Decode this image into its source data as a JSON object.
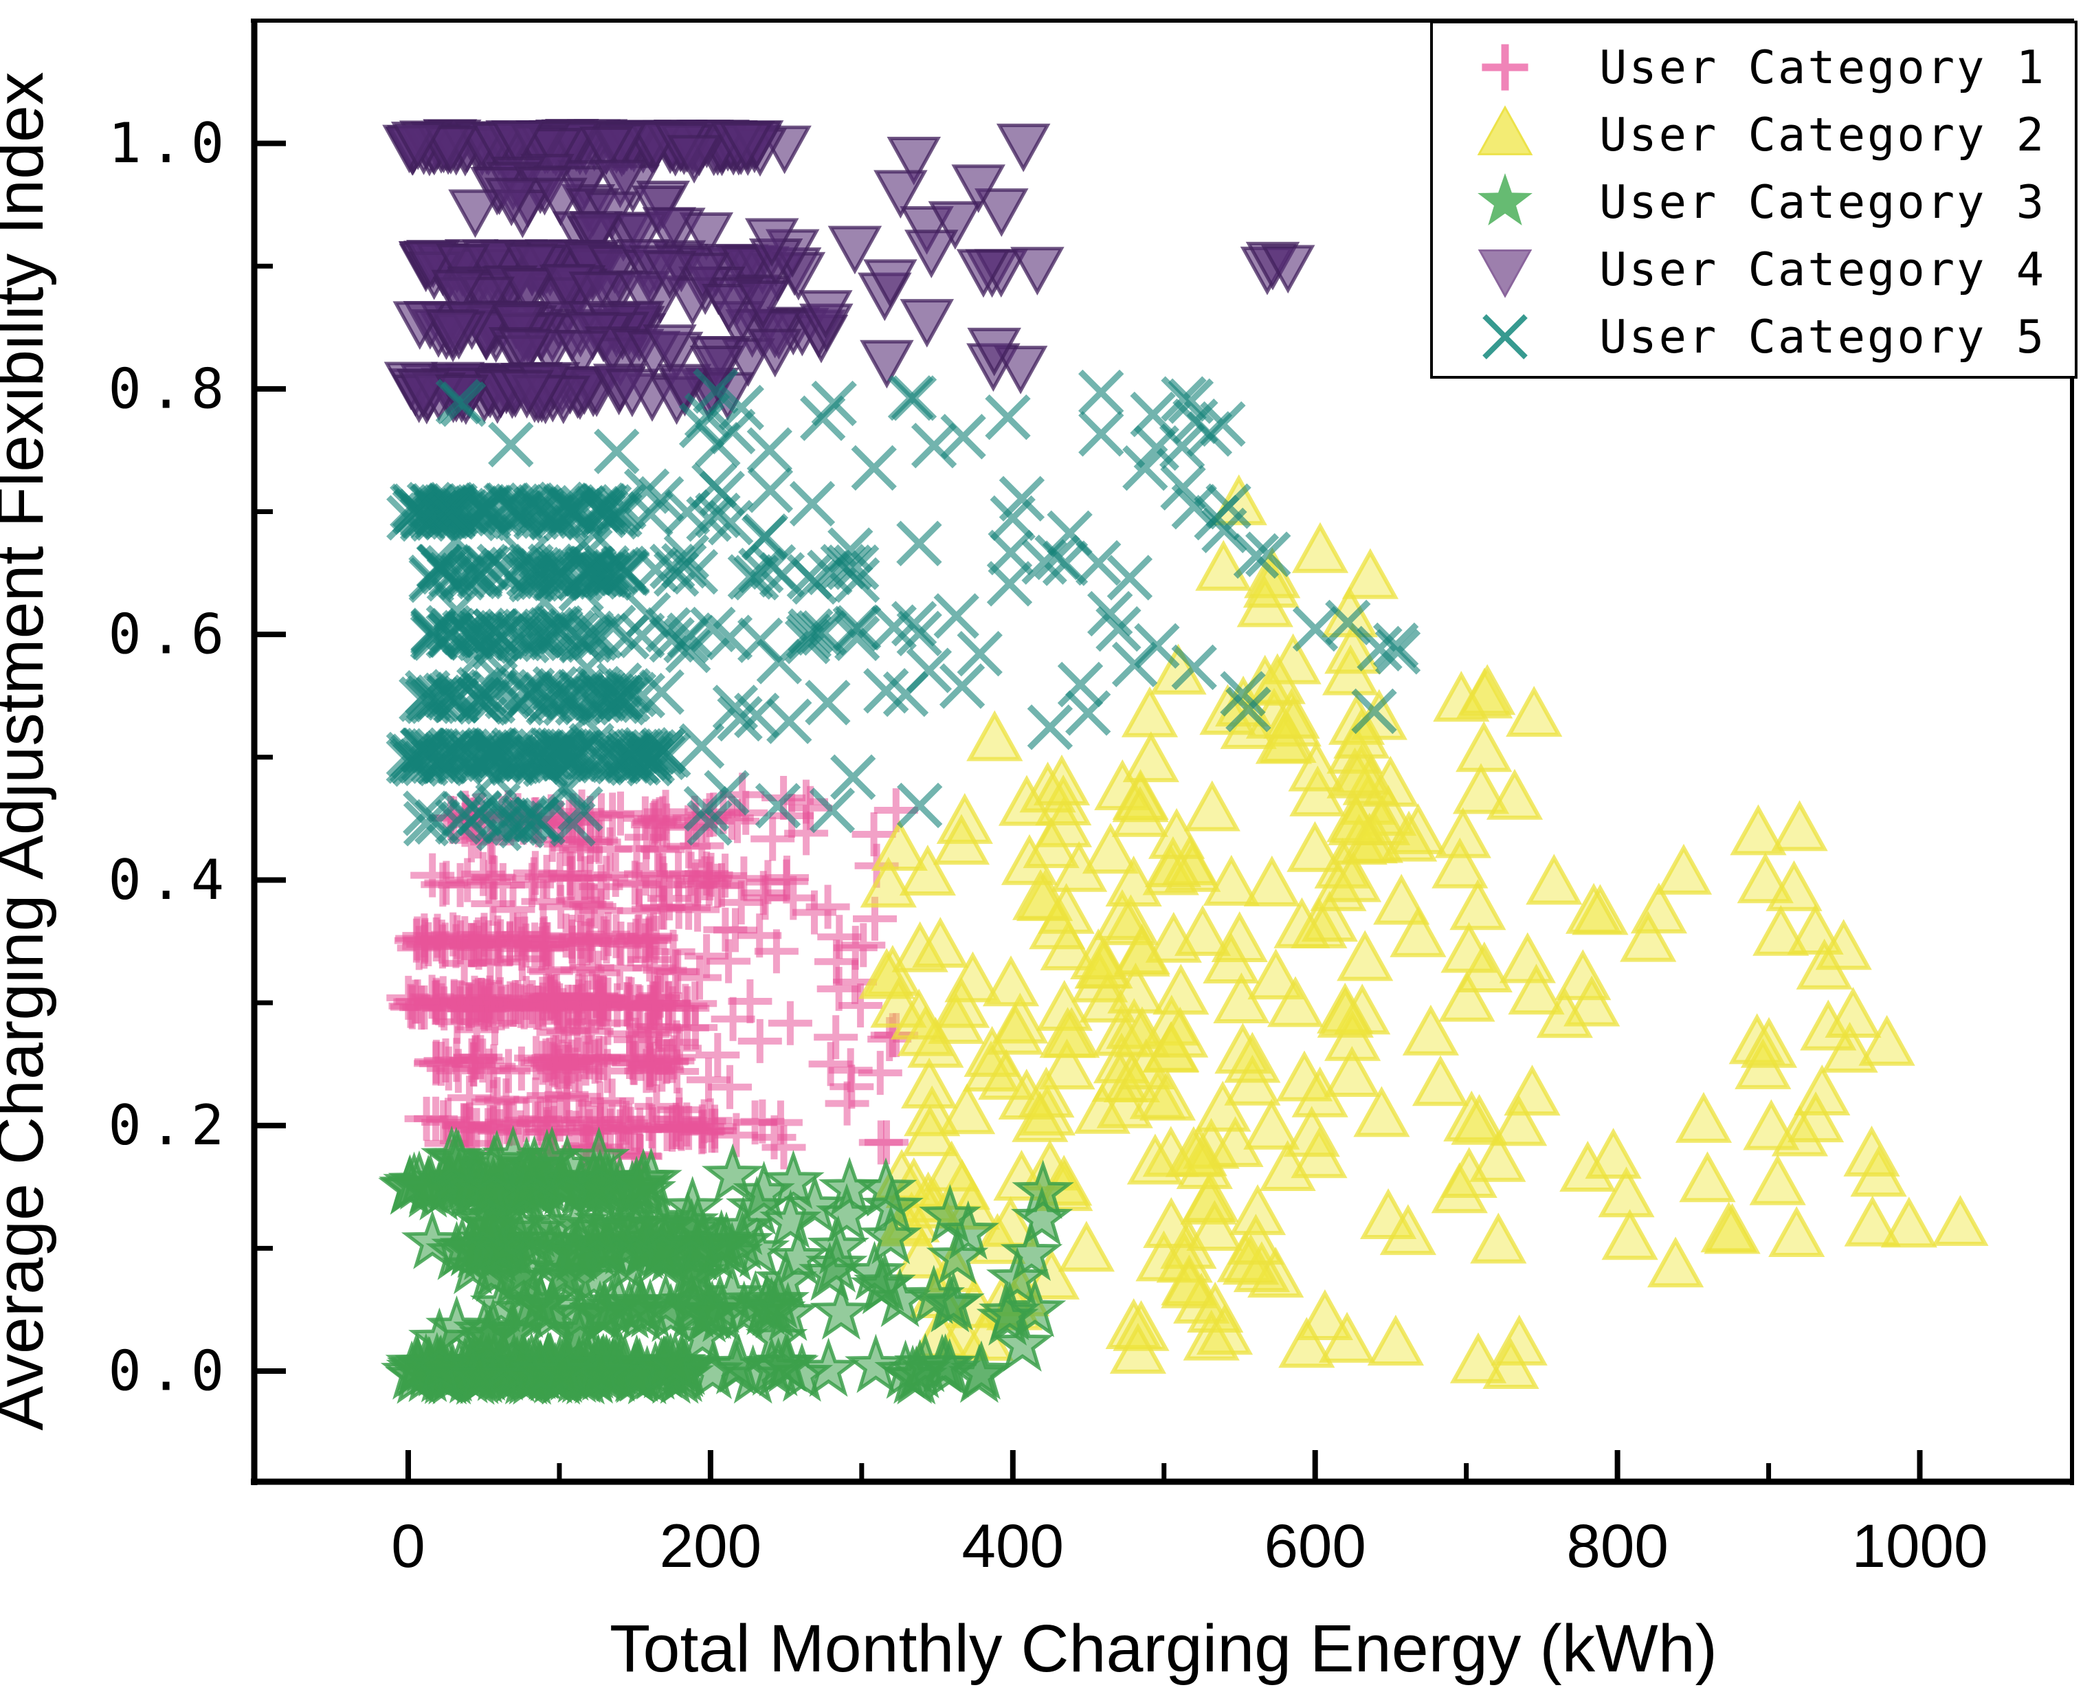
{
  "figure": {
    "background": "#ffffff"
  },
  "x_axis": {
    "label": "Total Monthly Charging Energy (kWh)",
    "tick_labels": [
      "0",
      "200",
      "400",
      "600",
      "800",
      "1000"
    ],
    "tick_values": [
      0,
      200,
      400,
      600,
      800,
      1000
    ],
    "minor_tick_values": [
      100,
      300,
      500,
      700,
      900
    ],
    "range": [
      -102,
      1101
    ]
  },
  "y_axis": {
    "label": "Average Charging Adjustment Flexibility Index",
    "tick_labels": [
      "0.0",
      "0.2",
      "0.4",
      "0.6",
      "0.8",
      "1.0"
    ],
    "tick_values": [
      0,
      0.2,
      0.4,
      0.6,
      0.8,
      1.0
    ],
    "minor_tick_values": [
      0.1,
      0.3,
      0.5,
      0.7,
      0.9
    ],
    "range": [
      -0.09,
      1.1
    ]
  },
  "legend": {
    "entries": [
      {
        "label": "User Category 1",
        "marker": "plus",
        "color": "#f084b8"
      },
      {
        "label": "User Category 2",
        "marker": "triangle",
        "color": "#f3ec74",
        "edge": "#ece24a"
      },
      {
        "label": "User Category 3",
        "marker": "star",
        "color": "#66bb72"
      },
      {
        "label": "User Category 4",
        "marker": "tridown",
        "color": "#9d7fad",
        "edge": "#8a659c"
      },
      {
        "label": "User Category 5",
        "marker": "xcross",
        "color": "#379a90"
      }
    ]
  },
  "chart_data": {
    "type": "scatter",
    "xlabel": "Total Monthly Charging Energy (kWh)",
    "ylabel": "Average Charging Adjustment Flexibility Index",
    "xlim": [
      -102,
      1101
    ],
    "ylim": [
      -0.09,
      1.1
    ],
    "grid": false,
    "legend_position": "upper right",
    "series": [
      {
        "name": "User Category 1",
        "marker": "plus",
        "stroke": "rgba(231,84,153,0.55)",
        "stroke_width": 10,
        "clusters": [
          {
            "y": 0.45,
            "x": [
              25,
              225
            ],
            "n": 45
          },
          {
            "y": 0.43,
            "x": [
              30,
              160
            ],
            "n": 15
          },
          {
            "y": 0.4,
            "x": [
              15,
              240
            ],
            "n": 40
          },
          {
            "y": 0.38,
            "x": [
              40,
              200
            ],
            "n": 15
          },
          {
            "y": 0.35,
            "x": [
              5,
              165
            ],
            "n": 70
          },
          {
            "y": 0.33,
            "x": [
              30,
              180
            ],
            "n": 15
          },
          {
            "y": 0.3,
            "x": [
              0,
              175
            ],
            "n": 110
          },
          {
            "y": 0.28,
            "x": [
              20,
              190
            ],
            "n": 15
          },
          {
            "y": 0.25,
            "x": [
              15,
              185
            ],
            "n": 60
          },
          {
            "y": 0.22,
            "x": [
              40,
              200
            ],
            "n": 12
          },
          {
            "y": 0.2,
            "x": [
              5,
              205
            ],
            "n": 65
          },
          {
            "y": 0.18,
            "x": [
              25,
              215
            ],
            "n": 12
          },
          {
            "box": [
              150,
              330,
              0.17,
              0.47
            ],
            "n": 80
          }
        ]
      },
      {
        "name": "User Category 2",
        "marker": "triangle",
        "fill": "rgba(239,230,62,0.45)",
        "stroke": "rgba(236,226,60,0.75)",
        "stroke_width": 6,
        "clusters": [
          {
            "box": [
              315,
              520,
              0.02,
              0.5
            ],
            "n": 90
          },
          {
            "box": [
              380,
              700,
              0.05,
              0.55
            ],
            "n": 90
          },
          {
            "box": [
              500,
              750,
              0.15,
              0.58
            ],
            "n": 45
          },
          {
            "box": [
              700,
              960,
              0.08,
              0.45
            ],
            "n": 40
          },
          {
            "box": [
              520,
              640,
              0.55,
              0.72
            ],
            "n": 12
          },
          {
            "box": [
              850,
              1040,
              0.1,
              0.35
            ],
            "n": 10
          },
          {
            "box": [
              380,
              760,
              0.0,
              0.05
            ],
            "n": 12
          }
        ]
      },
      {
        "name": "User Category 3",
        "marker": "star",
        "fill": "rgba(60,160,75,0.55)",
        "stroke": "rgba(60,160,75,0.85)",
        "stroke_width": 5,
        "clusters": [
          {
            "y": 0.0,
            "x": [
              0,
              185
            ],
            "n": 130
          },
          {
            "y": 0.0,
            "x": [
              185,
              380
            ],
            "n": 20
          },
          {
            "y": 0.03,
            "x": [
              20,
              120
            ],
            "n": 10
          },
          {
            "y": 0.05,
            "x": [
              55,
              265
            ],
            "n": 35
          },
          {
            "y": 0.08,
            "x": [
              40,
              200
            ],
            "n": 15
          },
          {
            "y": 0.1,
            "x": [
              15,
              225
            ],
            "n": 55
          },
          {
            "y": 0.12,
            "x": [
              30,
              190
            ],
            "n": 18
          },
          {
            "y": 0.15,
            "x": [
              0,
              165
            ],
            "n": 70
          },
          {
            "y": 0.17,
            "x": [
              15,
              130
            ],
            "n": 12
          },
          {
            "box": [
              185,
              420,
              0.0,
              0.16
            ],
            "n": 45
          }
        ]
      },
      {
        "name": "User Category 4",
        "marker": "tridown",
        "fill": "rgba(86,44,118,0.58)",
        "stroke": "rgba(66,32,92,0.75)",
        "stroke_width": 5,
        "clusters": [
          {
            "y": 1.0,
            "x": [
              0,
              230
            ],
            "n": 120,
            "jy": 0.004
          },
          {
            "y": 1.0,
            "x": [
              0,
              310
            ],
            "n": 25,
            "jy": 0.004
          },
          {
            "y": 0.97,
            "x": [
              50,
              150
            ],
            "n": 12
          },
          {
            "y": 0.95,
            "x": [
              40,
              170
            ],
            "n": 10
          },
          {
            "y": 0.93,
            "x": [
              80,
              215
            ],
            "n": 10
          },
          {
            "y": 0.9,
            "x": [
              10,
              130
            ],
            "n": 70
          },
          {
            "y": 0.9,
            "x": [
              130,
              270
            ],
            "n": 18
          },
          {
            "y": 0.9,
            "x": [
              380,
              405
            ],
            "n": 3
          },
          {
            "y": 0.9,
            "x": [
              555,
              590
            ],
            "n": 3
          },
          {
            "y": 0.88,
            "x": [
              25,
              150
            ],
            "n": 25
          },
          {
            "y": 0.88,
            "x": [
              150,
              240
            ],
            "n": 8
          },
          {
            "y": 0.85,
            "x": [
              5,
              155
            ],
            "n": 45
          },
          {
            "y": 0.85,
            "x": [
              155,
              290
            ],
            "n": 10
          },
          {
            "y": 0.83,
            "x": [
              50,
              240
            ],
            "n": 12
          },
          {
            "y": 0.8,
            "x": [
              0,
              125
            ],
            "n": 50
          },
          {
            "y": 0.8,
            "x": [
              125,
              215
            ],
            "n": 10
          },
          {
            "box": [
              150,
              420,
              0.8,
              1.0
            ],
            "n": 30
          }
        ]
      },
      {
        "name": "User Category 5",
        "marker": "xcross",
        "stroke": "rgba(20,130,120,0.6)",
        "stroke_width": 9,
        "clusters": [
          {
            "y": 0.7,
            "x": [
              0,
              145
            ],
            "n": 90
          },
          {
            "y": 0.65,
            "x": [
              15,
              145
            ],
            "n": 60
          },
          {
            "y": 0.65,
            "x": [
              145,
              310
            ],
            "n": 15
          },
          {
            "y": 0.6,
            "x": [
              15,
              135
            ],
            "n": 45
          },
          {
            "y": 0.6,
            "x": [
              135,
              310
            ],
            "n": 12
          },
          {
            "y": 0.55,
            "x": [
              5,
              150
            ],
            "n": 55
          },
          {
            "y": 0.5,
            "x": [
              0,
              175
            ],
            "n": 110
          },
          {
            "y": 0.45,
            "x": [
              10,
              110
            ],
            "n": 20
          },
          {
            "box": [
              30,
              340,
              0.44,
              0.8
            ],
            "n": 90
          },
          {
            "box": [
              340,
              570,
              0.5,
              0.8
            ],
            "n": 45
          },
          {
            "box": [
              570,
              660,
              0.5,
              0.62
            ],
            "n": 6
          }
        ]
      }
    ]
  }
}
